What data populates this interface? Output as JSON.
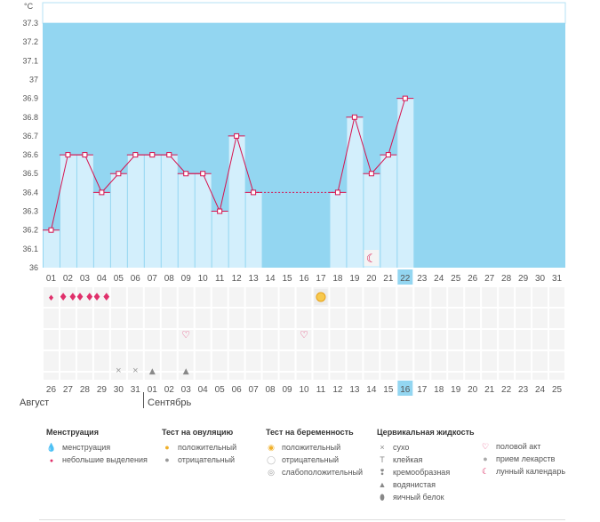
{
  "chart_data": {
    "type": "line",
    "unit_label": "°C",
    "y_ticks": [
      "37.3",
      "37.2",
      "37.1",
      "37",
      "36.9",
      "36.8",
      "36.7",
      "36.6",
      "36.5",
      "36.4",
      "36.3",
      "36.2",
      "36.1",
      "36"
    ],
    "ylim": [
      36,
      37.3
    ],
    "cycle_days": [
      "01",
      "02",
      "03",
      "04",
      "05",
      "06",
      "07",
      "08",
      "09",
      "10",
      "11",
      "12",
      "13",
      "14",
      "15",
      "16",
      "17",
      "18",
      "19",
      "20",
      "21",
      "22",
      "23",
      "24",
      "25",
      "26",
      "27",
      "28",
      "29",
      "30",
      "31"
    ],
    "highlight_day": "22",
    "temperatures": [
      36.2,
      36.6,
      36.6,
      36.4,
      36.5,
      36.6,
      36.6,
      36.6,
      36.5,
      36.5,
      36.3,
      36.7,
      36.4,
      null,
      null,
      null,
      null,
      36.4,
      36.8,
      36.5,
      36.6,
      36.9,
      null,
      null,
      null,
      null,
      null,
      null,
      null,
      null,
      null
    ],
    "interpolated_segment": [
      13,
      18
    ],
    "menstruation_rows": [
      {
        "day": 1,
        "kind": "small"
      },
      {
        "day": 2,
        "kind": "full"
      },
      {
        "day": 3,
        "kind": "full"
      },
      {
        "day": 4,
        "kind": "full"
      }
    ],
    "ovulation_positive_day": 17,
    "intercourse_days": [
      9,
      16
    ],
    "dry_days": [
      5,
      6
    ],
    "watery_days": [
      7,
      9
    ],
    "lunar_day": 20,
    "calendar_dates": [
      "26",
      "27",
      "28",
      "29",
      "30",
      "31",
      "01",
      "02",
      "03",
      "04",
      "05",
      "06",
      "07",
      "08",
      "09",
      "10",
      "11",
      "12",
      "13",
      "14",
      "15",
      "16",
      "17",
      "18",
      "19",
      "20",
      "21",
      "22",
      "23",
      "24",
      "25"
    ],
    "calendar_red_indices": [
      5,
      6,
      12,
      13,
      20,
      21,
      26,
      27
    ],
    "calendar_highlight_index": 21
  },
  "months": {
    "first": "Август",
    "second": "Сентябрь"
  },
  "colors": {
    "top_band": "#93d6f1",
    "bar": "#d3effc",
    "line": "#d6134f",
    "red_text": "#d6134f",
    "highlight_cell": "#93d6f1"
  },
  "legend": {
    "menstruation": {
      "title": "Менструация",
      "items": [
        "менструация",
        "небольшие выделения"
      ]
    },
    "ovulation_test": {
      "title": "Тест на овуляцию",
      "items": [
        "положительный",
        "отрицательный"
      ]
    },
    "pregnancy_test": {
      "title": "Тест на беременность",
      "items": [
        "положительный",
        "отрицательный",
        "слабоположительный"
      ]
    },
    "cervical_fluid": {
      "title": "Цервикальная жидкость",
      "items": [
        "сухо",
        "клейкая",
        "кремообразная",
        "водянистая",
        "яичный белок"
      ]
    },
    "other": {
      "items": [
        "половой акт",
        "прием лекарств",
        "лунный календарь"
      ]
    }
  }
}
